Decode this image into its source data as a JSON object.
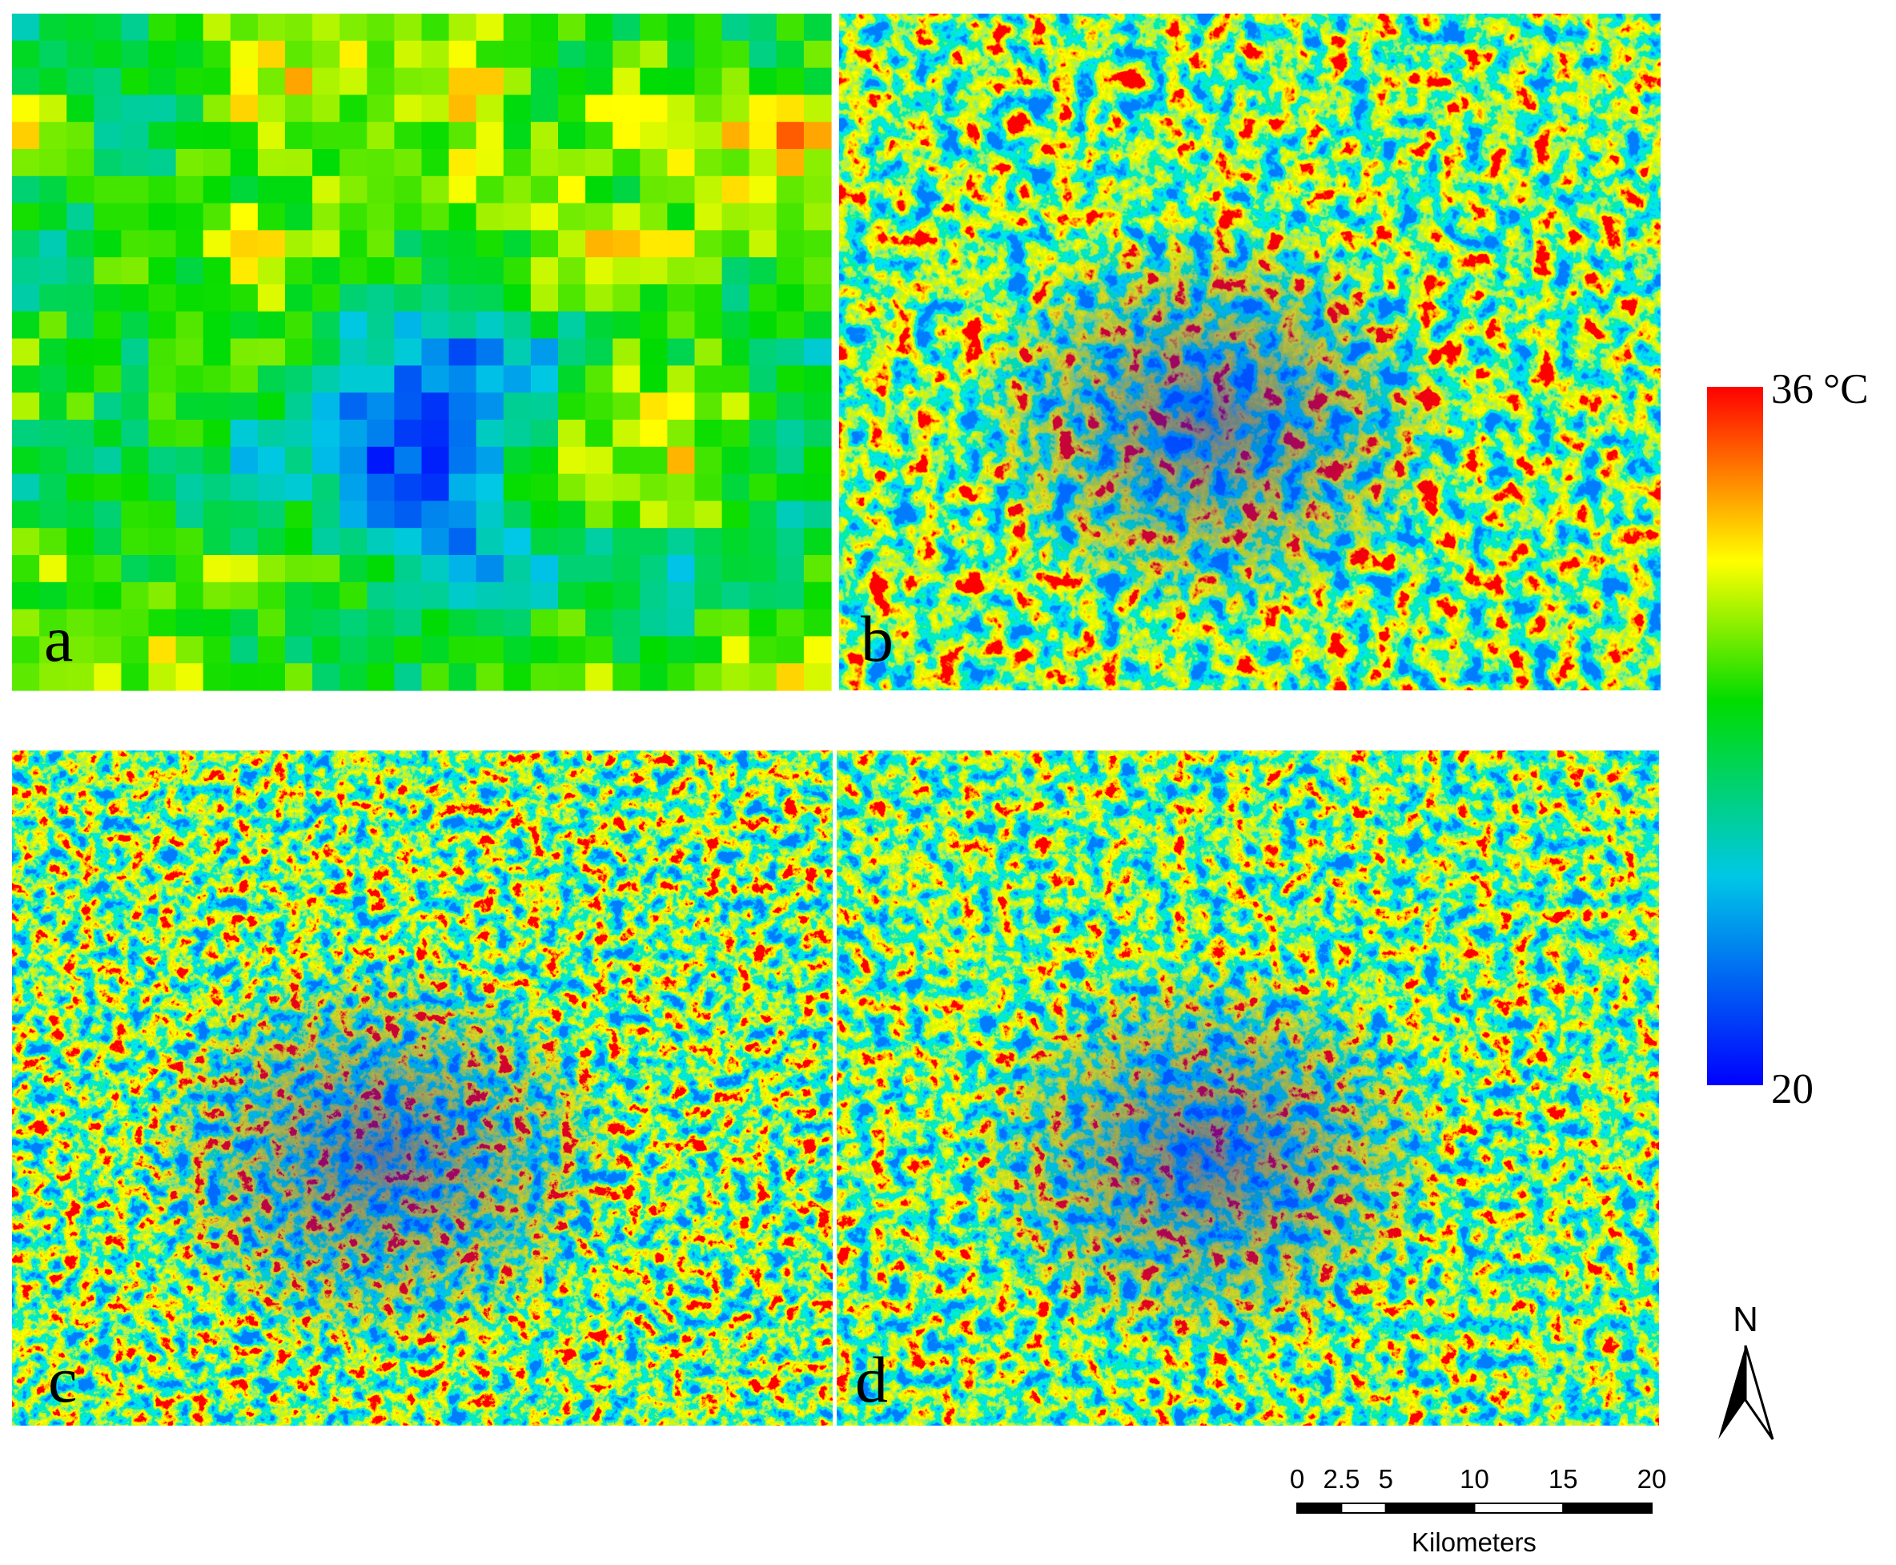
{
  "panels": [
    {
      "label": "a"
    },
    {
      "label": "b"
    },
    {
      "label": "c"
    },
    {
      "label": "d"
    }
  ],
  "colorbar": {
    "lim": [
      20,
      36
    ],
    "ticks": [
      20,
      36
    ],
    "unit": "°C"
  },
  "north_arrow": {
    "label": "N"
  },
  "scale_bar": {
    "ticks": [
      0,
      2.5,
      5,
      10,
      15,
      20
    ],
    "label": "Kilometers"
  }
}
